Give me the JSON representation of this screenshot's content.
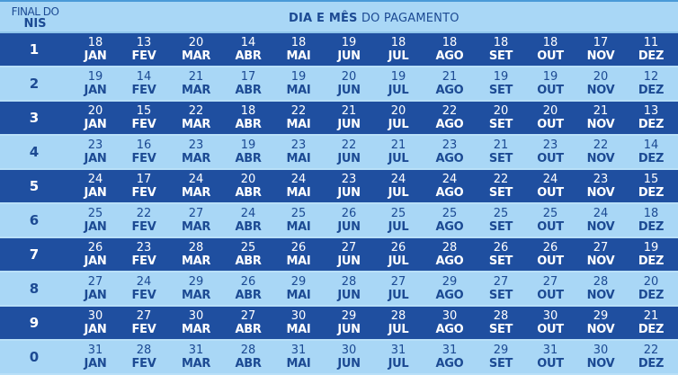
{
  "header": {
    "nis_label_line1": "FINAL DO",
    "nis_label_line2": "NIS",
    "title_bold": "DIA E MÊS",
    "title_rest": " DO PAGAMENTO"
  },
  "colors": {
    "dark_row": "#1f4fa0",
    "light_row": "#a9d7f6",
    "dark_text": "#1c4a93",
    "light_text": "#ffffff"
  },
  "months": [
    "JAN",
    "FEV",
    "MAR",
    "ABR",
    "MAI",
    "JUN",
    "JUL",
    "AGO",
    "SET",
    "OUT",
    "NOV",
    "DEZ"
  ],
  "rows": [
    {
      "nis": "1",
      "days": [
        "18",
        "13",
        "20",
        "14",
        "18",
        "19",
        "18",
        "18",
        "18",
        "18",
        "17",
        "11"
      ]
    },
    {
      "nis": "2",
      "days": [
        "19",
        "14",
        "21",
        "17",
        "19",
        "20",
        "19",
        "21",
        "19",
        "19",
        "20",
        "12"
      ]
    },
    {
      "nis": "3",
      "days": [
        "20",
        "15",
        "22",
        "18",
        "22",
        "21",
        "20",
        "22",
        "20",
        "20",
        "21",
        "13"
      ]
    },
    {
      "nis": "4",
      "days": [
        "23",
        "16",
        "23",
        "19",
        "23",
        "22",
        "21",
        "23",
        "21",
        "23",
        "22",
        "14"
      ]
    },
    {
      "nis": "5",
      "days": [
        "24",
        "17",
        "24",
        "20",
        "24",
        "23",
        "24",
        "24",
        "22",
        "24",
        "23",
        "15"
      ]
    },
    {
      "nis": "6",
      "days": [
        "25",
        "22",
        "27",
        "24",
        "25",
        "26",
        "25",
        "25",
        "25",
        "25",
        "24",
        "18"
      ]
    },
    {
      "nis": "7",
      "days": [
        "26",
        "23",
        "28",
        "25",
        "26",
        "27",
        "26",
        "28",
        "26",
        "26",
        "27",
        "19"
      ]
    },
    {
      "nis": "8",
      "days": [
        "27",
        "24",
        "29",
        "26",
        "29",
        "28",
        "27",
        "29",
        "27",
        "27",
        "28",
        "20"
      ]
    },
    {
      "nis": "9",
      "days": [
        "30",
        "27",
        "30",
        "27",
        "30",
        "29",
        "28",
        "30",
        "28",
        "30",
        "29",
        "21"
      ]
    },
    {
      "nis": "0",
      "days": [
        "31",
        "28",
        "31",
        "28",
        "31",
        "30",
        "31",
        "31",
        "29",
        "31",
        "30",
        "22"
      ]
    }
  ]
}
